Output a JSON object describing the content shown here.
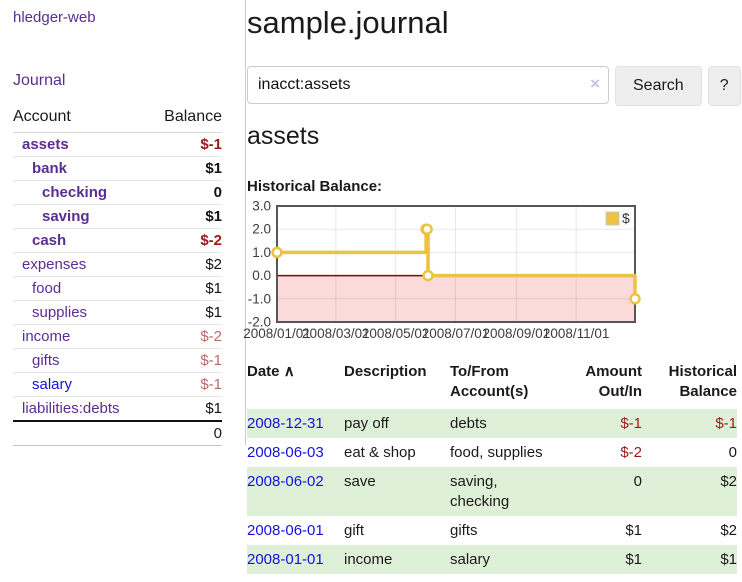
{
  "colors": {
    "link_purple": "#5c2d91",
    "link_blue": "#1412d8",
    "negative_strong": "#9a1a1a",
    "negative_soft": "#bb6a6a",
    "row_stripe_green": "#dff0d8",
    "button_gray": "#eeeeee",
    "chart_line_gold": "#EDC240",
    "chart_negative_region": "#fcdada",
    "chart_zero_line": "#8b0000",
    "chart_border": "#565656"
  },
  "icons": {
    "sort_asc": "∧",
    "clear_search": "×"
  },
  "sidebar": {
    "app_title": "hledger-web",
    "journal_link": "Journal",
    "accounts": {
      "headers": {
        "account": "Account",
        "balance": "Balance"
      },
      "rows": [
        {
          "name": "assets",
          "indent": 1,
          "emphasis": true,
          "link_color": "purple",
          "balance": "$-1",
          "balance_tone": "negative-strong"
        },
        {
          "name": "bank",
          "indent": 2,
          "emphasis": true,
          "link_color": "purple",
          "balance": "$1",
          "balance_tone": "normal"
        },
        {
          "name": "checking",
          "indent": 3,
          "emphasis": true,
          "link_color": "purple",
          "balance": "0",
          "balance_tone": "normal"
        },
        {
          "name": "saving",
          "indent": 3,
          "emphasis": true,
          "link_color": "purple",
          "balance": "$1",
          "balance_tone": "normal"
        },
        {
          "name": "cash",
          "indent": 2,
          "emphasis": true,
          "link_color": "purple",
          "balance": "$-2",
          "balance_tone": "negative-strong"
        },
        {
          "name": "expenses",
          "indent": 1,
          "emphasis": false,
          "link_color": "purple",
          "balance": "$2",
          "balance_tone": "normal"
        },
        {
          "name": "food",
          "indent": 2,
          "emphasis": false,
          "link_color": "purple",
          "balance": "$1",
          "balance_tone": "normal"
        },
        {
          "name": "supplies",
          "indent": 2,
          "emphasis": false,
          "link_color": "purple",
          "balance": "$1",
          "balance_tone": "normal"
        },
        {
          "name": "income",
          "indent": 1,
          "emphasis": false,
          "link_color": "purple",
          "balance": "$-2",
          "balance_tone": "negative-soft"
        },
        {
          "name": "gifts",
          "indent": 2,
          "emphasis": false,
          "link_color": "purple",
          "balance": "$-1",
          "balance_tone": "negative-soft"
        },
        {
          "name": "salary",
          "indent": 2,
          "emphasis": false,
          "link_color": "blue",
          "balance": "$-1",
          "balance_tone": "negative-soft"
        },
        {
          "name": "liabilities:debts",
          "indent": 1,
          "emphasis": false,
          "link_color": "purple",
          "balance": "$1",
          "balance_tone": "normal"
        }
      ],
      "total": "0"
    }
  },
  "main": {
    "title": "sample.journal",
    "search": {
      "value": "inacct:assets",
      "button": "Search",
      "help": "?"
    },
    "account_heading": "assets",
    "chart_title": "Historical Balance:",
    "transactions": {
      "headers": {
        "date": "Date",
        "description": "Description",
        "accounts": [
          "To/From",
          "Account(s)"
        ],
        "amount": [
          "Amount",
          "Out/In"
        ],
        "balance": [
          "Historical",
          "Balance"
        ]
      },
      "rows": [
        {
          "date": "2008-12-31",
          "description": "pay off",
          "accounts": "debts",
          "amount": "$-1",
          "amount_tone": "negative",
          "balance": "$-1",
          "balance_tone": "negative"
        },
        {
          "date": "2008-06-03",
          "description": "eat & shop",
          "accounts": "food, supplies",
          "amount": "$-2",
          "amount_tone": "negative",
          "balance": "0",
          "balance_tone": "normal"
        },
        {
          "date": "2008-06-02",
          "description": "save",
          "accounts": "saving, checking",
          "amount": "0",
          "amount_tone": "normal",
          "balance": "$2",
          "balance_tone": "normal"
        },
        {
          "date": "2008-06-01",
          "description": "gift",
          "accounts": "gifts",
          "amount": "$1",
          "amount_tone": "normal",
          "balance": "$2",
          "balance_tone": "normal"
        },
        {
          "date": "2008-01-01",
          "description": "income",
          "accounts": "salary",
          "amount": "$1",
          "amount_tone": "normal",
          "balance": "$1",
          "balance_tone": "normal"
        }
      ]
    }
  },
  "chart_data": {
    "type": "line",
    "title": "Historical Balance:",
    "steps": true,
    "series": [
      {
        "name": "$",
        "color": "#EDC240",
        "x": [
          "2008-01-01",
          "2008-06-01",
          "2008-06-02",
          "2008-06-03",
          "2008-12-31"
        ],
        "y": [
          1,
          2,
          2,
          0,
          -1
        ]
      }
    ],
    "x_ticks": [
      {
        "date": "2008-01-01",
        "label": "2008/01/01"
      },
      {
        "date": "2008-03-01",
        "label": "2008/03/01"
      },
      {
        "date": "2008-05-01",
        "label": "2008/05/01"
      },
      {
        "date": "2008-07-01",
        "label": "2008/07/01"
      },
      {
        "date": "2008-09-01",
        "label": "2008/09/01"
      },
      {
        "date": "2008-11-01",
        "label": "2008/11/01"
      }
    ],
    "y_ticks": [
      "3.0",
      "2.0",
      "1.0",
      "0.0",
      "-1.0",
      "-2.0"
    ],
    "ylim": [
      -2,
      3
    ],
    "xlim": [
      "2008-01-01",
      "2008-12-31"
    ],
    "grid": true,
    "legend": {
      "label": "$",
      "position": "top-right"
    },
    "negative_region_shaded": true
  }
}
